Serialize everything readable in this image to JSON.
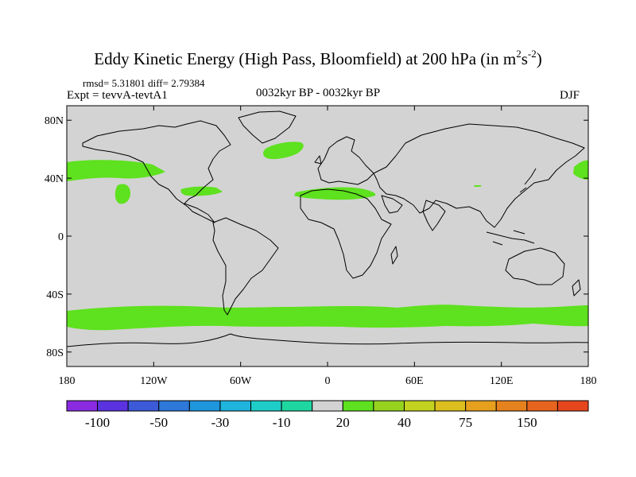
{
  "title": {
    "main": "Eddy Kinetic Energy (High Pass, Bloomfield) at 200 hPa (in m",
    "sup1": "2",
    "mid": "s",
    "sup2": "-2",
    "end": ")"
  },
  "stats": "rmsd= 5.31801 diff= 2.79384",
  "expt": "Expt = tevvA-tevtA1",
  "period": "0032kyr BP - 0032kyr BP",
  "season": "DJF",
  "map": {
    "background_color": "#d3d3d3",
    "positive_color": "#5ee11e",
    "y_ticks": [
      {
        "lat": 80,
        "label": "80N"
      },
      {
        "lat": 40,
        "label": "40N"
      },
      {
        "lat": 0,
        "label": "0"
      },
      {
        "lat": -40,
        "label": "40S"
      },
      {
        "lat": -80,
        "label": "80S"
      }
    ],
    "x_ticks": [
      {
        "lon": -180,
        "label": "180"
      },
      {
        "lon": -120,
        "label": "120W"
      },
      {
        "lon": -60,
        "label": "60W"
      },
      {
        "lon": 0,
        "label": "0"
      },
      {
        "lon": 60,
        "label": "60E"
      },
      {
        "lon": 120,
        "label": "120E"
      },
      {
        "lon": 180,
        "label": "180"
      }
    ],
    "lat_range": [
      -90,
      90
    ],
    "lon_range": [
      -180,
      180
    ]
  },
  "colorbar": {
    "colors": [
      "#8a2be2",
      "#5a32e0",
      "#3c5ad8",
      "#2d78d8",
      "#1e96dc",
      "#1eb4dc",
      "#1ecdc8",
      "#1ed7a0",
      "#d3d3d3",
      "#5ee11e",
      "#96d21e",
      "#c3d21e",
      "#dcbe1e",
      "#e6a01e",
      "#e6821e",
      "#e6641e",
      "#e6461e"
    ],
    "labels": [
      {
        "after_box": 1,
        "label": "-100"
      },
      {
        "after_box": 3,
        "label": "-50"
      },
      {
        "after_box": 5,
        "label": "-30"
      },
      {
        "after_box": 7,
        "label": "-10"
      },
      {
        "after_box": 9,
        "label": "20"
      },
      {
        "after_box": 11,
        "label": "40"
      },
      {
        "after_box": 13,
        "label": "75"
      },
      {
        "after_box": 15,
        "label": "150"
      }
    ]
  }
}
